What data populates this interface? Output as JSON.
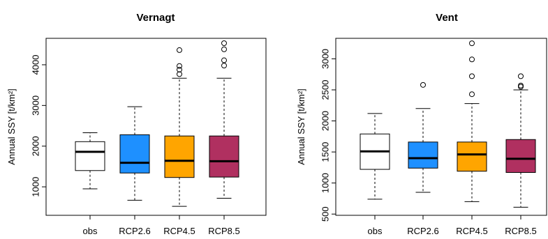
{
  "chart_data": [
    {
      "type": "boxplot",
      "title": "Vernagt",
      "xlabel": "",
      "ylabel": "Annual SSY [t/km²]",
      "ylim": [
        300,
        4650
      ],
      "yticks": [
        1000,
        2000,
        3000,
        4000
      ],
      "categories": [
        "obs",
        "RCP2.6",
        "RCP4.5",
        "RCP8.5"
      ],
      "colors": [
        "#ffffff",
        "#1e90ff",
        "#ffa500",
        "#b03060"
      ],
      "boxes": [
        {
          "min": 950,
          "q1": 1400,
          "median": 1860,
          "q3": 2110,
          "max": 2330,
          "outliers": []
        },
        {
          "min": 670,
          "q1": 1340,
          "median": 1590,
          "q3": 2280,
          "max": 2970,
          "outliers": []
        },
        {
          "min": 520,
          "q1": 1230,
          "median": 1640,
          "q3": 2250,
          "max": 3670,
          "outliers": [
            3770,
            3880,
            3970,
            4360
          ]
        },
        {
          "min": 720,
          "q1": 1240,
          "median": 1630,
          "q3": 2250,
          "max": 3670,
          "outliers": [
            3980,
            4110,
            4380,
            4530
          ]
        }
      ],
      "grid": false,
      "legend": "none"
    },
    {
      "type": "boxplot",
      "title": "Vent",
      "xlabel": "",
      "ylabel": "Annual SSY [t/km²]",
      "ylim": [
        480,
        3330
      ],
      "yticks": [
        500,
        1000,
        1500,
        2000,
        2500,
        3000
      ],
      "categories": [
        "obs",
        "RCP2.6",
        "RCP4.5",
        "RCP8.5"
      ],
      "colors": [
        "#ffffff",
        "#1e90ff",
        "#ffa500",
        "#b03060"
      ],
      "boxes": [
        {
          "min": 740,
          "q1": 1220,
          "median": 1510,
          "q3": 1790,
          "max": 2120,
          "outliers": []
        },
        {
          "min": 850,
          "q1": 1240,
          "median": 1400,
          "q3": 1660,
          "max": 2200,
          "outliers": [
            2580
          ]
        },
        {
          "min": 700,
          "q1": 1190,
          "median": 1460,
          "q3": 1660,
          "max": 2280,
          "outliers": [
            2430,
            2720,
            2990,
            3250
          ]
        },
        {
          "min": 610,
          "q1": 1170,
          "median": 1390,
          "q3": 1700,
          "max": 2500,
          "outliers": [
            2550,
            2570,
            2720
          ]
        }
      ],
      "grid": false,
      "legend": "none"
    }
  ]
}
